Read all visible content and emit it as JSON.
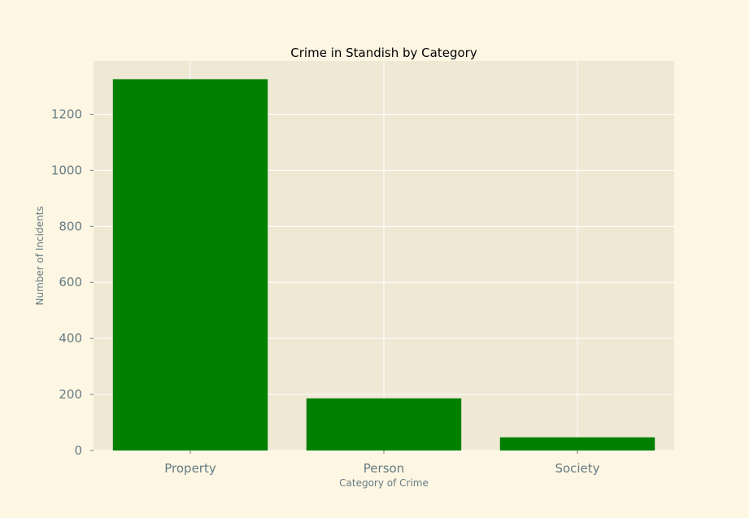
{
  "chart_data": {
    "type": "bar",
    "title": "Crime in Standish by Category",
    "xlabel": "Category of Crime",
    "ylabel": "Number of Incidents",
    "categories": [
      "Property",
      "Person",
      "Society"
    ],
    "values": [
      1325,
      186,
      47
    ],
    "ylim": [
      0,
      1390
    ],
    "yticks": [
      0,
      200,
      400,
      600,
      800,
      1000,
      1200
    ],
    "grid": true,
    "legend": "none",
    "colors": {
      "bar": "#008000",
      "plot_background": "#eee8d5",
      "figure_background": "#fdf6e3",
      "grid": "#ffffff",
      "tick_text": "#657b83",
      "title_text": "#000000"
    }
  }
}
